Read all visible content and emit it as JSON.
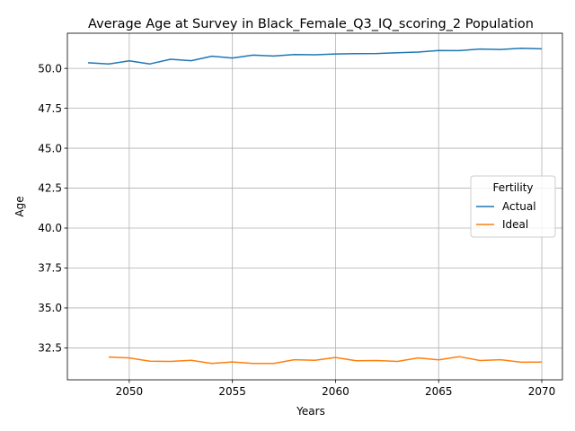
{
  "chart_data": {
    "type": "line",
    "title": "Average Age at Survey in Black_Female_Q3_IQ_scoring_2 Population",
    "xlabel": "Years",
    "ylabel": "Age",
    "xlim": [
      2047,
      2071
    ],
    "ylim": [
      30.5,
      52.2
    ],
    "xticks": [
      2050,
      2055,
      2060,
      2065,
      2070
    ],
    "yticks": [
      32.5,
      35.0,
      37.5,
      40.0,
      42.5,
      45.0,
      47.5,
      50.0
    ],
    "grid": true,
    "legend": {
      "title": "Fertility",
      "placement": "center-right"
    },
    "series": [
      {
        "name": "Actual",
        "color": "#1f77b4",
        "x": [
          2048,
          2049,
          2050,
          2051,
          2052,
          2053,
          2054,
          2055,
          2056,
          2057,
          2058,
          2059,
          2060,
          2061,
          2062,
          2063,
          2064,
          2065,
          2066,
          2067,
          2068,
          2069,
          2070
        ],
        "y": [
          50.35,
          50.27,
          50.47,
          50.28,
          50.57,
          50.48,
          50.76,
          50.65,
          50.83,
          50.77,
          50.86,
          50.85,
          50.9,
          50.92,
          50.93,
          50.98,
          51.02,
          51.12,
          51.11,
          51.21,
          51.18,
          51.26,
          51.22
        ]
      },
      {
        "name": "Ideal",
        "color": "#ff7f0e",
        "x": [
          2049,
          2050,
          2051,
          2052,
          2053,
          2054,
          2055,
          2056,
          2057,
          2058,
          2059,
          2060,
          2061,
          2062,
          2063,
          2064,
          2065,
          2066,
          2067,
          2068,
          2069,
          2070
        ],
        "y": [
          31.93,
          31.87,
          31.67,
          31.65,
          31.72,
          31.53,
          31.62,
          31.53,
          31.53,
          31.76,
          31.72,
          31.9,
          31.69,
          31.71,
          31.65,
          31.87,
          31.75,
          31.95,
          31.71,
          31.76,
          31.6,
          31.61
        ]
      }
    ]
  }
}
